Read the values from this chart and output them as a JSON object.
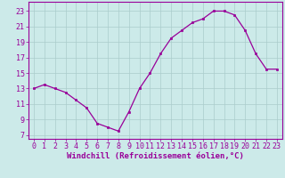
{
  "x": [
    0,
    1,
    2,
    3,
    4,
    5,
    6,
    7,
    8,
    9,
    10,
    11,
    12,
    13,
    14,
    15,
    16,
    17,
    18,
    19,
    20,
    21,
    22,
    23
  ],
  "y": [
    13.0,
    13.5,
    13.0,
    12.5,
    11.5,
    10.5,
    8.5,
    8.0,
    7.5,
    10.0,
    13.0,
    15.0,
    17.5,
    19.5,
    20.5,
    21.5,
    22.0,
    23.0,
    23.0,
    22.5,
    20.5,
    17.5,
    15.5,
    15.5
  ],
  "line_color": "#990099",
  "marker_color": "#990099",
  "bg_color": "#cceae9",
  "xlabel": "Windchill (Refroidissement éolien,°C)",
  "ylabel_ticks": [
    7,
    9,
    11,
    13,
    15,
    17,
    19,
    21,
    23
  ],
  "xlim": [
    -0.5,
    23.5
  ],
  "ylim": [
    6.5,
    24.2
  ],
  "tick_label_color": "#990099",
  "axis_label_color": "#990099",
  "grid_major_color": "#aacccc",
  "xlabel_fontsize": 6.5,
  "tick_fontsize": 6.0
}
